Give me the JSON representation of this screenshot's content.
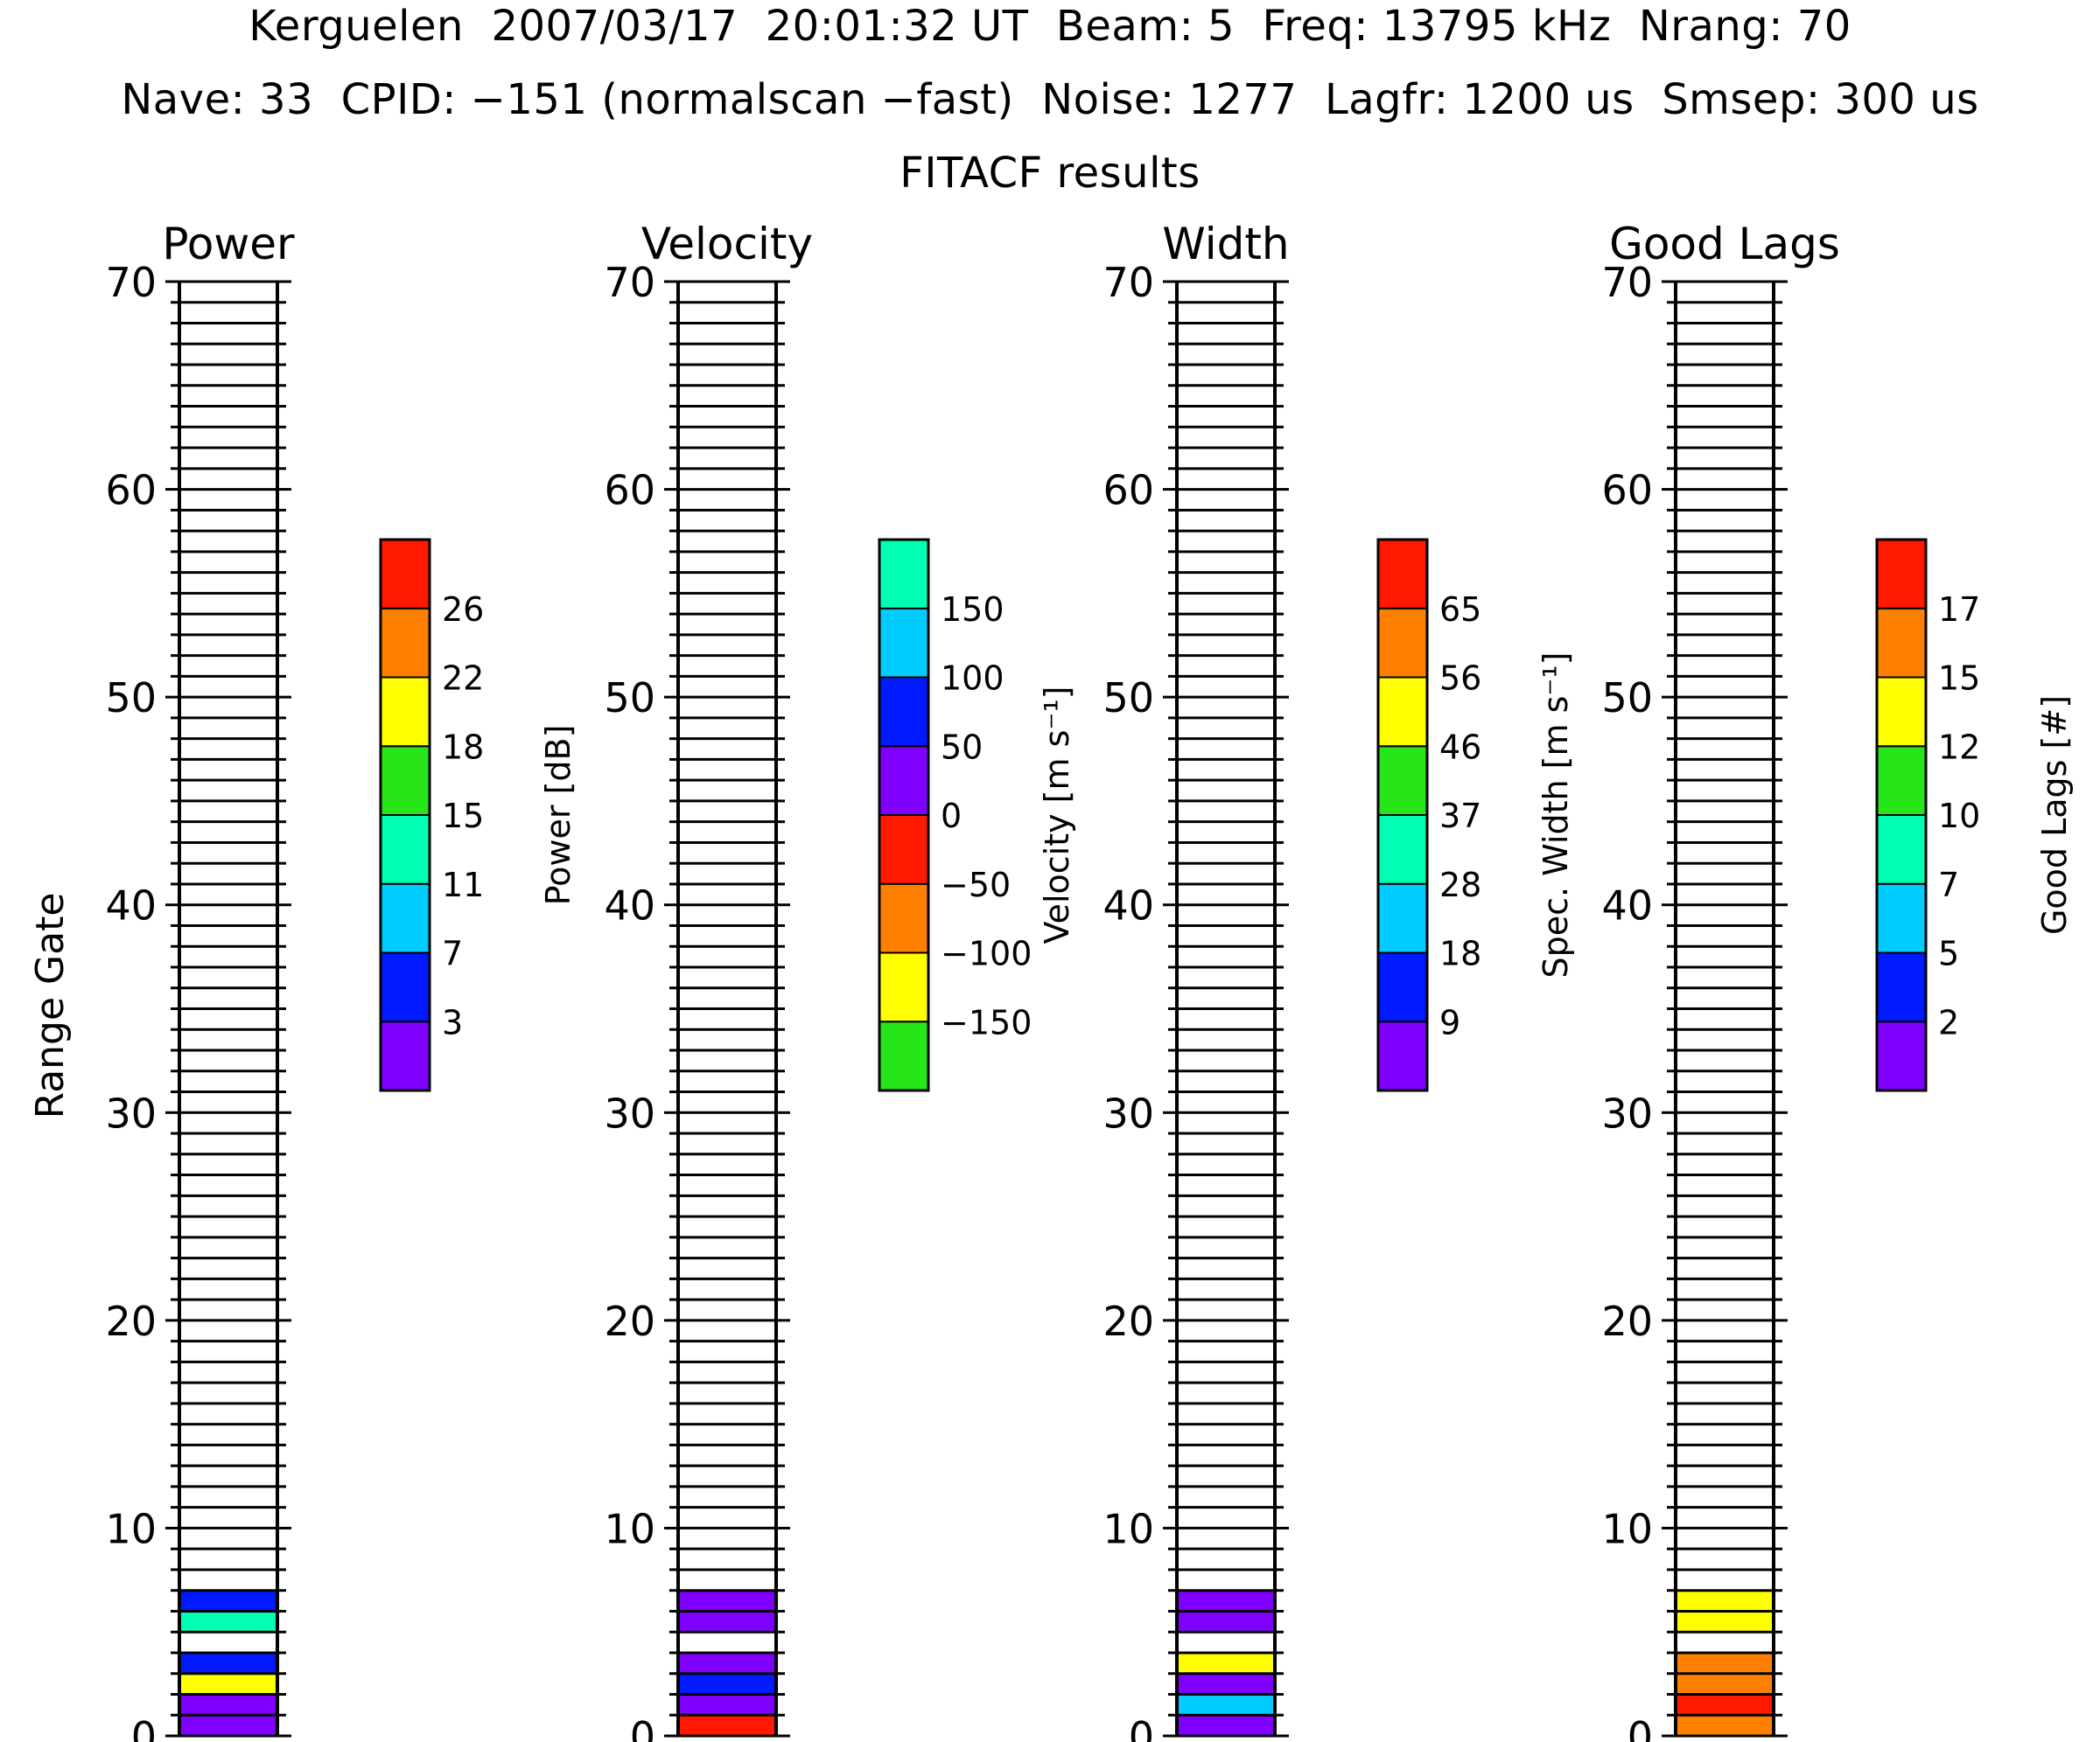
{
  "header": {
    "line1": "Kerguelen  2007/03/17  20:01:32 UT  Beam: 5  Freq: 13795 kHz  Nrang: 70",
    "line2": "Nave: 33  CPID: −151 (normalscan −fast)  Noise: 1277  Lagfr: 1200 us  Smsep: 300 us",
    "line3": "FITACF results"
  },
  "chart_data": {
    "type": "heatmap",
    "shared_y": {
      "label": "Range Gate",
      "range": [
        0,
        70
      ],
      "ticks": [
        0,
        10,
        20,
        30,
        40,
        50,
        60,
        70
      ]
    },
    "colors": [
      "#7f00ff",
      "#0019ff",
      "#00ccff",
      "#00ffb2",
      "#26e619",
      "#ffff00",
      "#ff8000",
      "#ff1900"
    ],
    "panels": [
      {
        "title": "Power",
        "colorbar": {
          "label": "Power [dB]",
          "ticks": [
            "3",
            "7",
            "11",
            "15",
            "18",
            "22",
            "26"
          ],
          "colors": [
            "#7f00ff",
            "#0019ff",
            "#00ccff",
            "#00ffb2",
            "#26e619",
            "#ffff00",
            "#ff8000",
            "#ff1900"
          ]
        },
        "gates": [
          {
            "gate": 0,
            "color": "#7f00ff"
          },
          {
            "gate": 1,
            "color": "#7f00ff"
          },
          {
            "gate": 2,
            "color": "#ffff00"
          },
          {
            "gate": 3,
            "color": "#0019ff"
          },
          {
            "gate": 5,
            "color": "#00ffb2"
          },
          {
            "gate": 6,
            "color": "#0019ff"
          }
        ]
      },
      {
        "title": "Velocity",
        "colorbar": {
          "label": "Velocity [m s⁻¹]",
          "ticks": [
            "−150",
            "−100",
            "−50",
            "0",
            "50",
            "100",
            "150"
          ],
          "colors": [
            "#26e619",
            "#ffff00",
            "#ff8000",
            "#ff1900",
            "#7f00ff",
            "#0019ff",
            "#00ccff",
            "#00ffb2"
          ]
        },
        "gates": [
          {
            "gate": 0,
            "color": "#ff1900"
          },
          {
            "gate": 1,
            "color": "#7f00ff"
          },
          {
            "gate": 2,
            "color": "#0019ff"
          },
          {
            "gate": 3,
            "color": "#7f00ff"
          },
          {
            "gate": 5,
            "color": "#7f00ff"
          },
          {
            "gate": 6,
            "color": "#7f00ff"
          }
        ]
      },
      {
        "title": "Width",
        "colorbar": {
          "label": "Spec. Width [m s⁻¹]",
          "ticks": [
            "9",
            "18",
            "28",
            "37",
            "46",
            "56",
            "65"
          ],
          "colors": [
            "#7f00ff",
            "#0019ff",
            "#00ccff",
            "#00ffb2",
            "#26e619",
            "#ffff00",
            "#ff8000",
            "#ff1900"
          ]
        },
        "gates": [
          {
            "gate": 0,
            "color": "#7f00ff"
          },
          {
            "gate": 1,
            "color": "#00ccff"
          },
          {
            "gate": 2,
            "color": "#7f00ff"
          },
          {
            "gate": 3,
            "color": "#ffff00"
          },
          {
            "gate": 5,
            "color": "#7f00ff"
          },
          {
            "gate": 6,
            "color": "#7f00ff"
          }
        ]
      },
      {
        "title": "Good Lags",
        "colorbar": {
          "label": "Good Lags [#]",
          "ticks": [
            "2",
            "5",
            "7",
            "10",
            "12",
            "15",
            "17"
          ],
          "colors": [
            "#7f00ff",
            "#0019ff",
            "#00ccff",
            "#00ffb2",
            "#26e619",
            "#ffff00",
            "#ff8000",
            "#ff1900"
          ]
        },
        "gates": [
          {
            "gate": 0,
            "color": "#ff8000"
          },
          {
            "gate": 1,
            "color": "#ff1900"
          },
          {
            "gate": 2,
            "color": "#ff8000"
          },
          {
            "gate": 3,
            "color": "#ff8000"
          },
          {
            "gate": 5,
            "color": "#ffff00"
          },
          {
            "gate": 6,
            "color": "#ffff00"
          }
        ]
      }
    ]
  }
}
